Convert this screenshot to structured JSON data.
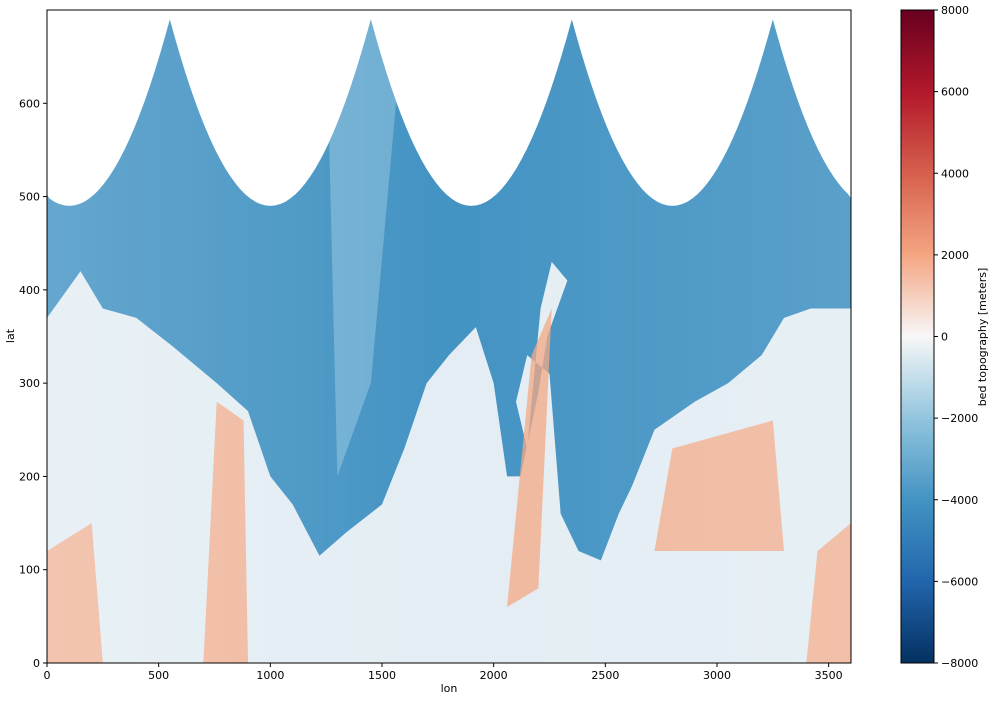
{
  "chart_data": {
    "type": "heatmap",
    "title": "",
    "xlabel": "lon",
    "ylabel": "lat",
    "xlim": [
      0,
      3600
    ],
    "ylim": [
      0,
      700
    ],
    "xticks": [
      0,
      500,
      1000,
      1500,
      2000,
      2500,
      3000,
      3500
    ],
    "yticks": [
      0,
      100,
      200,
      300,
      400,
      500,
      600
    ],
    "colorbar": {
      "label": "bed topography [meters]",
      "colormap": "RdBu_r",
      "vmin": -8000,
      "vmax": 8000,
      "ticks": [
        -8000,
        -6000,
        -4000,
        -2000,
        0,
        2000,
        4000,
        6000,
        8000
      ]
    },
    "data_boundary": {
      "description_of_shape": "scalloped top edge",
      "cusp_lons": [
        550,
        1450,
        2350,
        3250
      ],
      "cusp_lat": 690,
      "trough_lons": [
        100,
        1000,
        1900,
        2800
      ],
      "trough_lat": 490
    },
    "regions": [
      {
        "name": "ocean",
        "approx_value": -4500,
        "lat_range": [
          120,
          700
        ]
      },
      {
        "name": "land",
        "approx_value": 0,
        "lat_range": [
          0,
          420
        ]
      }
    ],
    "colors": {
      "deep": "#053061",
      "ocean": "#4393c3",
      "shelf": "#92c5de",
      "zero": "#f7f7f7",
      "high": "#f4a582",
      "peak": "#67001f"
    }
  }
}
